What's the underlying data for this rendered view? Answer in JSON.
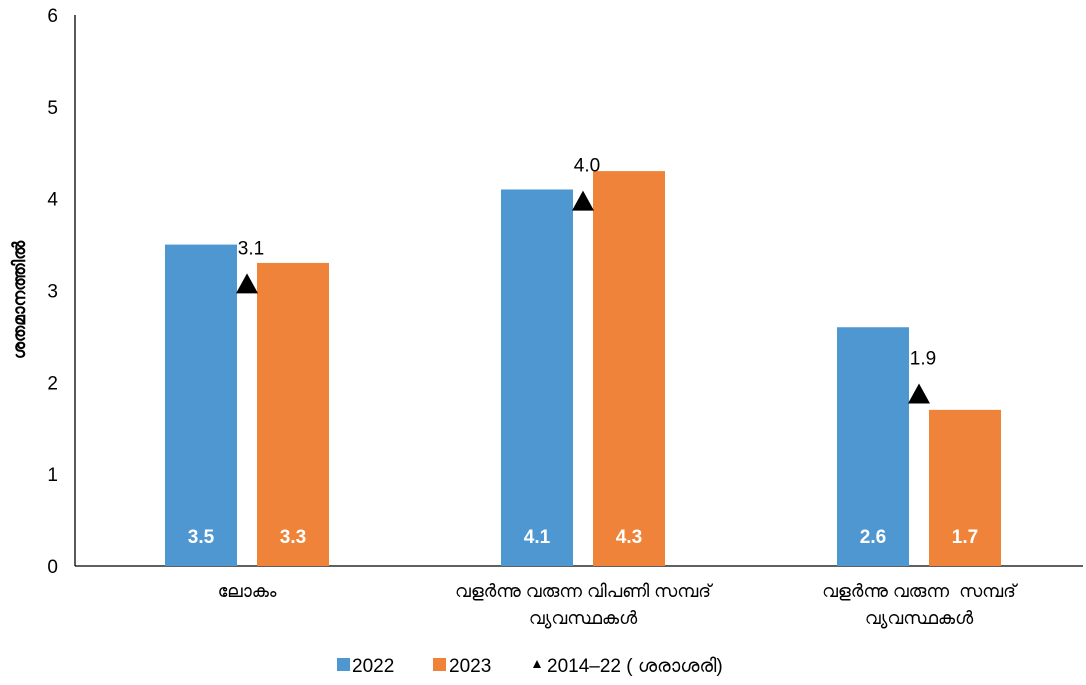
{
  "chart_data": {
    "type": "bar",
    "categories": [
      [
        "ലോകം"
      ],
      [
        "വളർന്നു വരുന്ന വിപണി സമ്പദ്",
        "വ്യവസ്ഥകൾ"
      ],
      [
        "വളർന്നു വരുന്ന  സമ്പദ്",
        "വ്യവസ്ഥകൾ"
      ]
    ],
    "series": [
      {
        "name": "2022",
        "values": [
          3.5,
          4.1,
          2.6
        ],
        "color": "#4F97D1"
      },
      {
        "name": "2023",
        "values": [
          3.3,
          4.3,
          1.7
        ],
        "color": "#EF833A"
      }
    ],
    "markers": {
      "name": "2014–22 ( ശരാശരി)",
      "values": [
        3.1,
        4.0,
        1.9
      ],
      "marker": "triangle",
      "color": "#000000"
    },
    "ylabel": "ശതമാനത്തിൽ",
    "ylim": [
      0,
      6
    ],
    "yticks": [
      0,
      1,
      2,
      3,
      4,
      5,
      6
    ],
    "grid": false,
    "legend": "bottom"
  }
}
